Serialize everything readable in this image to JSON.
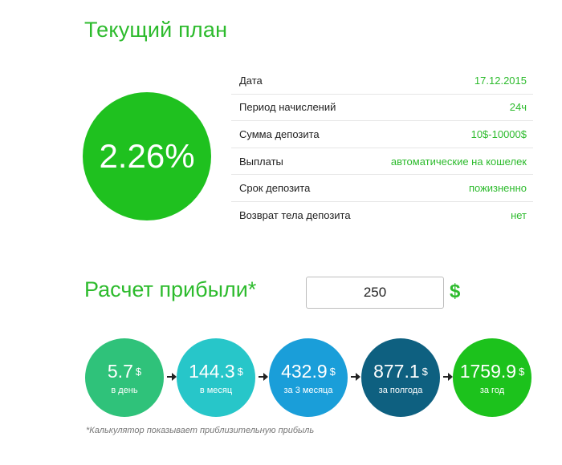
{
  "header": {
    "title": "Текущий план"
  },
  "plan": {
    "rate": "2.26%",
    "rows": [
      {
        "label": "Дата",
        "value": "17.12.2015"
      },
      {
        "label": "Период начислений",
        "value": "24ч"
      },
      {
        "label": "Сумма депозита",
        "value": "10$-10000$"
      },
      {
        "label": "Выплаты",
        "value": "автоматические на кошелек"
      },
      {
        "label": "Срок депозита",
        "value": "пожизненно"
      },
      {
        "label": "Возврат тела депозита",
        "value": "нет"
      }
    ]
  },
  "calculator": {
    "title": "Расчет прибыли*",
    "amount": "250",
    "currency": "$",
    "results": [
      {
        "value": "5.7",
        "currency": "$",
        "period": "в день",
        "color": "#2fc27a"
      },
      {
        "value": "144.3",
        "currency": "$",
        "period": "в месяц",
        "color": "#27c6c9"
      },
      {
        "value": "432.9",
        "currency": "$",
        "period": "за 3 месяца",
        "color": "#1a9ed9"
      },
      {
        "value": "877.1",
        "currency": "$",
        "period": "за полгода",
        "color": "#0e6080"
      },
      {
        "value": "1759.9",
        "currency": "$",
        "period": "за год",
        "color": "#1cc21c"
      }
    ],
    "note": "*Калькулятор показывает приблизительную прибыль"
  },
  "colors": {
    "accent": "#2dbb2d",
    "circle": "#1fc11f"
  }
}
